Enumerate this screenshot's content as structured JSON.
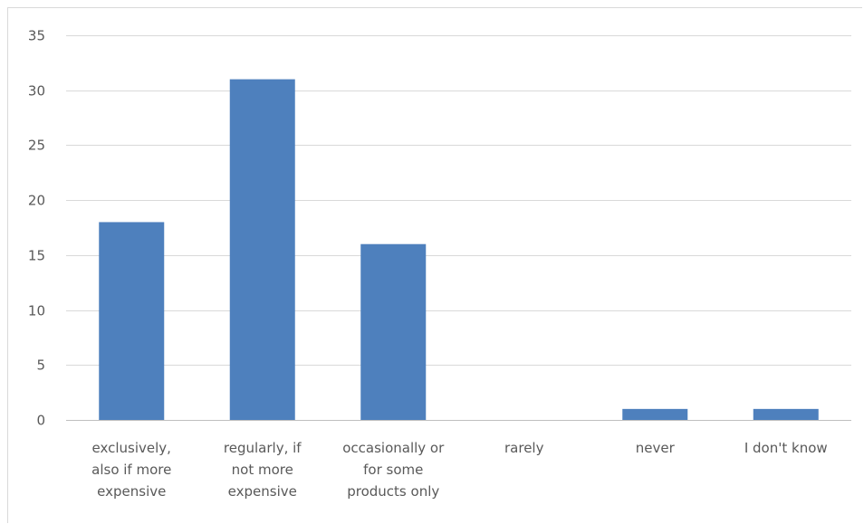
{
  "chart_data": {
    "type": "bar",
    "categories": [
      "exclusively, also if more expensive",
      "regularly, if not more expensive",
      "occasionally or for some products only",
      "rarely",
      "never",
      "I don't know"
    ],
    "category_lines": [
      [
        "exclusively,",
        "also if more",
        "expensive"
      ],
      [
        "regularly, if",
        "not more",
        "expensive"
      ],
      [
        "occasionally or",
        "for some",
        "products only"
      ],
      [
        "rarely"
      ],
      [
        "never"
      ],
      [
        "I don't know"
      ]
    ],
    "values": [
      18,
      31,
      16,
      0,
      1,
      1
    ],
    "ylim": [
      0,
      35
    ],
    "yticks": [
      0,
      5,
      10,
      15,
      20,
      25,
      30,
      35
    ],
    "title": "",
    "xlabel": "",
    "ylabel": "",
    "grid": true,
    "legend": "none",
    "colors": {
      "bar": "#4e80bd",
      "grid": "#d9d9d9",
      "axis": "#bfbfbf",
      "text": "#595959"
    }
  }
}
